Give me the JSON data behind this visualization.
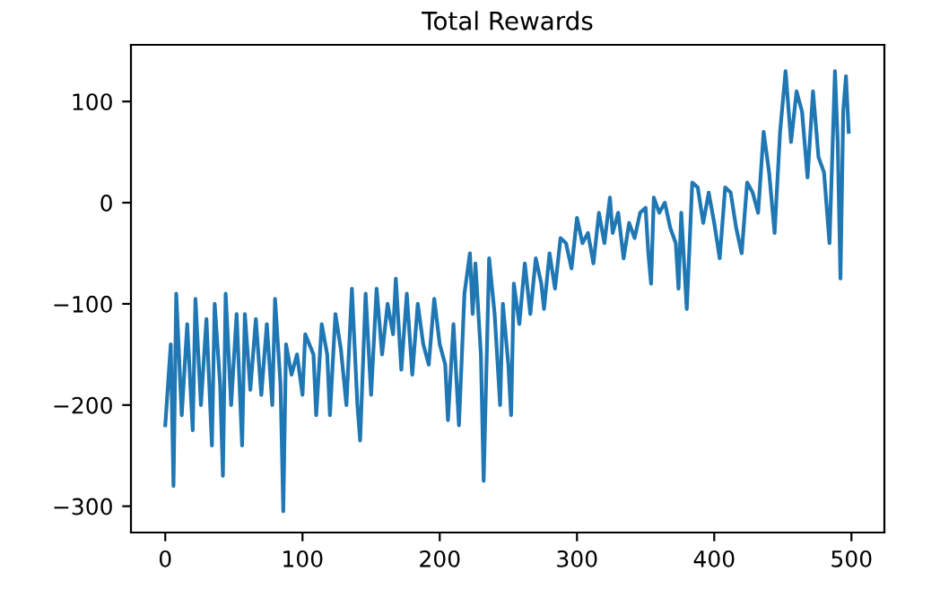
{
  "chart_data": {
    "type": "line",
    "title": "Total Rewards",
    "x": [
      0,
      4,
      6,
      8,
      12,
      16,
      20,
      22,
      26,
      30,
      34,
      36,
      40,
      42,
      44,
      48,
      52,
      56,
      58,
      62,
      66,
      70,
      74,
      78,
      80,
      84,
      86,
      88,
      92,
      96,
      100,
      102,
      108,
      110,
      114,
      118,
      120,
      124,
      128,
      132,
      136,
      140,
      142,
      146,
      150,
      154,
      158,
      162,
      166,
      168,
      172,
      176,
      180,
      184,
      188,
      192,
      196,
      200,
      204,
      206,
      210,
      214,
      218,
      222,
      224,
      226,
      230,
      232,
      236,
      240,
      244,
      246,
      250,
      252,
      254,
      258,
      262,
      266,
      270,
      274,
      276,
      280,
      284,
      288,
      292,
      296,
      300,
      304,
      308,
      312,
      316,
      320,
      324,
      326,
      330,
      334,
      338,
      342,
      346,
      350,
      352,
      354,
      356,
      360,
      364,
      368,
      372,
      374,
      376,
      380,
      384,
      388,
      392,
      396,
      400,
      404,
      408,
      412,
      416,
      420,
      424,
      428,
      432,
      436,
      440,
      444,
      448,
      452,
      456,
      460,
      464,
      468,
      472,
      476,
      480,
      484,
      488,
      490,
      492,
      494,
      496,
      498
    ],
    "series": [
      {
        "color": "#1f77b4",
        "values": [
          -220,
          -140,
          -280,
          -90,
          -210,
          -120,
          -225,
          -95,
          -200,
          -115,
          -240,
          -100,
          -180,
          -270,
          -90,
          -200,
          -110,
          -240,
          -110,
          -185,
          -115,
          -190,
          -120,
          -200,
          -95,
          -180,
          -305,
          -140,
          -170,
          -150,
          -190,
          -130,
          -150,
          -210,
          -120,
          -150,
          -210,
          -110,
          -145,
          -200,
          -85,
          -200,
          -235,
          -90,
          -190,
          -85,
          -150,
          -100,
          -130,
          -75,
          -165,
          -90,
          -170,
          -100,
          -140,
          -160,
          -95,
          -140,
          -160,
          -215,
          -120,
          -220,
          -90,
          -50,
          -110,
          -60,
          -150,
          -275,
          -55,
          -110,
          -200,
          -100,
          -160,
          -210,
          -80,
          -120,
          -60,
          -110,
          -55,
          -80,
          -105,
          -50,
          -85,
          -35,
          -40,
          -65,
          -15,
          -40,
          -30,
          -60,
          -10,
          -40,
          5,
          -30,
          -10,
          -55,
          -20,
          -35,
          -10,
          -5,
          -50,
          -80,
          5,
          -10,
          0,
          -25,
          -40,
          -85,
          -10,
          -105,
          20,
          15,
          -20,
          10,
          -20,
          -55,
          15,
          10,
          -25,
          -50,
          20,
          10,
          -10,
          70,
          30,
          -30,
          70,
          130,
          60,
          110,
          90,
          25,
          110,
          45,
          30,
          -40,
          130,
          60,
          -75,
          90,
          125,
          70
        ]
      }
    ],
    "xlim": [
      -25,
      524
    ],
    "ylim": [
      -326,
      156
    ],
    "xticks": [
      0,
      100,
      200,
      300,
      400,
      500
    ],
    "yticks": [
      -300,
      -200,
      -100,
      0,
      100
    ]
  }
}
